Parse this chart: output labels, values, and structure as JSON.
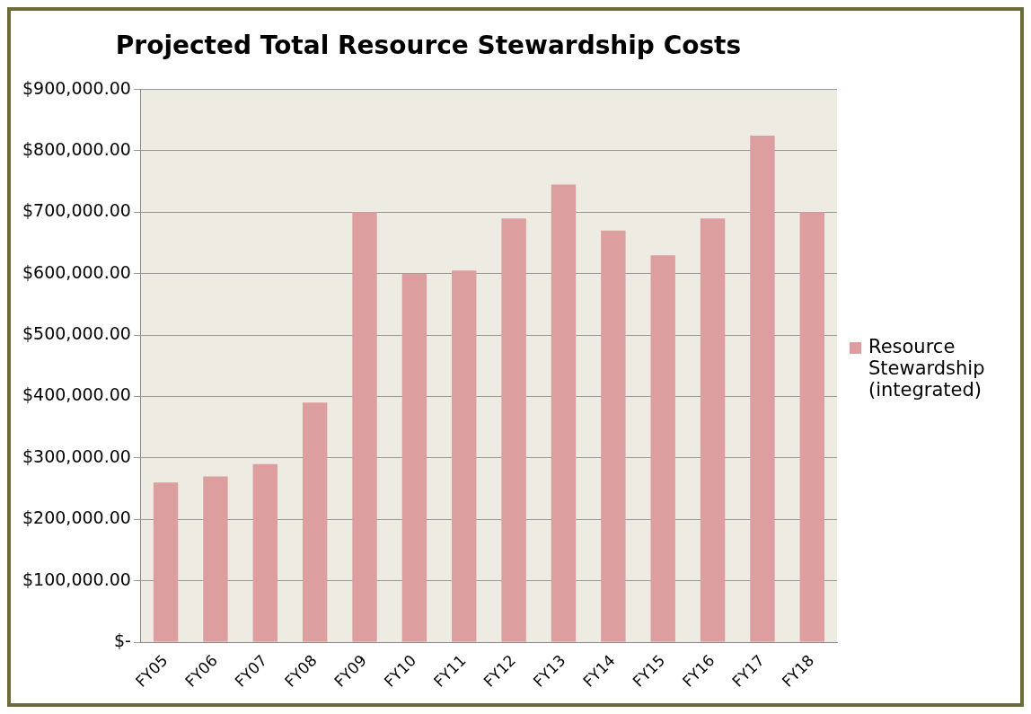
{
  "chart_data": {
    "type": "bar",
    "title": "Projected Total Resource Stewardship Costs",
    "categories": [
      "FY05",
      "FY06",
      "FY07",
      "FY08",
      "FY09",
      "FY10",
      "FY11",
      "FY12",
      "FY13",
      "FY14",
      "FY15",
      "FY16",
      "FY17",
      "FY18"
    ],
    "series": [
      {
        "name": "Resource Stewardship (integrated)",
        "color": "#dc9e9e",
        "values": [
          260000,
          270000,
          290000,
          390000,
          700000,
          600000,
          605000,
          690000,
          745000,
          670000,
          630000,
          690000,
          825000,
          700000
        ]
      }
    ],
    "ylim": [
      0,
      900000
    ],
    "yticks": [
      {
        "value": 0,
        "label": "$-"
      },
      {
        "value": 100000,
        "label": "$100,000.00"
      },
      {
        "value": 200000,
        "label": "$200,000.00"
      },
      {
        "value": 300000,
        "label": "$300,000.00"
      },
      {
        "value": 400000,
        "label": "$400,000.00"
      },
      {
        "value": 500000,
        "label": "$500,000.00"
      },
      {
        "value": 600000,
        "label": "$600,000.00"
      },
      {
        "value": 700000,
        "label": "$700,000.00"
      },
      {
        "value": 800000,
        "label": "$800,000.00"
      },
      {
        "value": 900000,
        "label": "$900,000.00"
      }
    ],
    "grid": "y",
    "legend": "right"
  }
}
